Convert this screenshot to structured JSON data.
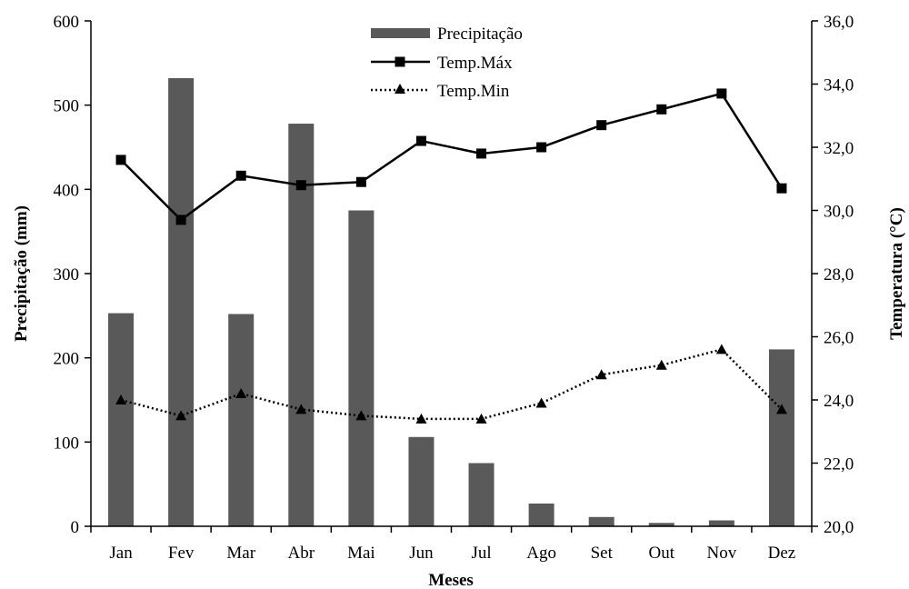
{
  "chart_data": {
    "type": "bar",
    "categories": [
      "Jan",
      "Fev",
      "Mar",
      "Abr",
      "Mai",
      "Jun",
      "Jul",
      "Ago",
      "Set",
      "Out",
      "Nov",
      "Dez"
    ],
    "series": [
      {
        "name": "Precipitação",
        "type": "bar",
        "axis": "left",
        "color": "#595959",
        "values": [
          253,
          532,
          252,
          478,
          375,
          106,
          75,
          27,
          11,
          4,
          7,
          210
        ]
      },
      {
        "name": "Temp.Máx",
        "type": "line",
        "axis": "right",
        "color": "#000000",
        "line_style": "solid",
        "marker": "square",
        "values": [
          31.6,
          29.7,
          31.1,
          30.8,
          30.9,
          32.2,
          31.8,
          32.0,
          32.7,
          33.2,
          33.7,
          30.7
        ]
      },
      {
        "name": "Temp.Min",
        "type": "line",
        "axis": "right",
        "color": "#000000",
        "line_style": "dotted",
        "marker": "triangle",
        "values": [
          24.0,
          23.5,
          24.2,
          23.7,
          23.5,
          23.4,
          23.4,
          23.9,
          24.8,
          25.1,
          25.6,
          23.7
        ]
      }
    ],
    "xlabel": "Meses",
    "ylabel": "Precipitação (mm)",
    "y2label": "Temperatura (°C)",
    "ylim": [
      0,
      600
    ],
    "y2lim": [
      20.0,
      36.0
    ],
    "y_ticks": [
      "0",
      "100",
      "200",
      "300",
      "400",
      "500",
      "600"
    ],
    "y2_ticks": [
      "20,0",
      "22,0",
      "24,0",
      "26,0",
      "28,0",
      "30,0",
      "32,0",
      "34,0",
      "36,0"
    ],
    "grid": false,
    "legend_position": "top-center"
  }
}
